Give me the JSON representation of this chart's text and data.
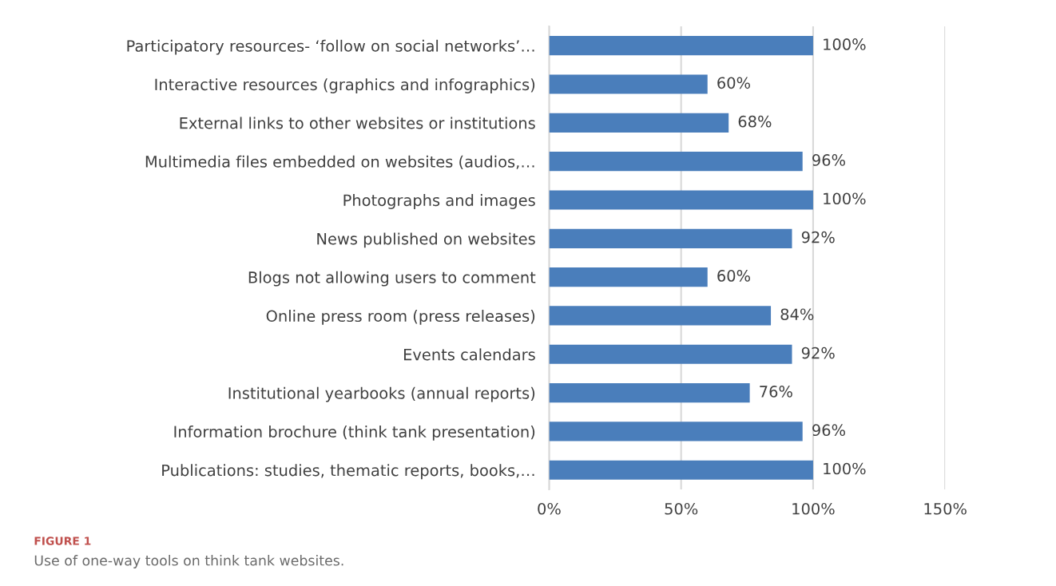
{
  "chart_data": {
    "type": "bar",
    "orientation": "horizontal",
    "categories": [
      "Participatory resources- ‘follow on social networks’…",
      "Interactive resources (graphics and infographics)",
      "External links to other websites or institutions",
      "Multimedia files embedded on websites (audios,…",
      "Photographs and images",
      "News published on websites",
      "Blogs not allowing users to comment",
      "Online press room (press releases)",
      "Events calendars",
      "Institutional yearbooks (annual reports)",
      "Information brochure (think tank presentation)",
      "Publications: studies, thematic reports, books,…"
    ],
    "values": [
      100,
      60,
      68,
      96,
      100,
      92,
      60,
      84,
      92,
      76,
      96,
      100
    ],
    "value_labels": [
      "100%",
      "60%",
      "68%",
      "96%",
      "100%",
      "92%",
      "60%",
      "84%",
      "92%",
      "76%",
      "96%",
      "100%"
    ],
    "color": "#4a7ebb",
    "xlim": [
      0,
      150
    ],
    "xticks": [
      {
        "value": 0,
        "label": "0%"
      },
      {
        "value": 50,
        "label": "50%"
      },
      {
        "value": 100,
        "label": "100%"
      },
      {
        "value": 150,
        "label": "150%"
      }
    ],
    "grid": "x",
    "annotations": [
      "FIGURE 1",
      "Use of one-way tools on think tank websites."
    ]
  }
}
